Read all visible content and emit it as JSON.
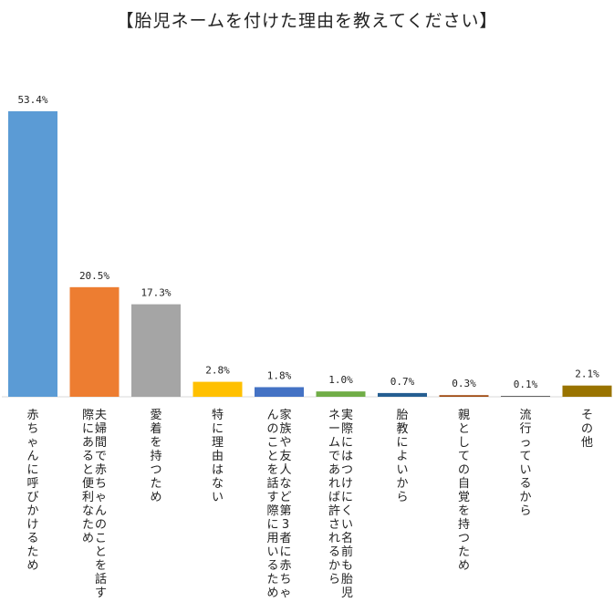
{
  "chart_data": {
    "type": "bar",
    "title": "【胎児ネームを付けた理由を教えてください】",
    "xlabel": "",
    "ylabel": "",
    "unit": "%",
    "ylim": [
      0,
      60
    ],
    "grid": false,
    "legend": "none",
    "categories": [
      "赤ちゃんに呼びかけるため",
      "夫婦間で赤ちゃんのことを話す際にあると便利なため",
      "愛着を持つため",
      "特に理由はない",
      "家族や友人など第3者に赤ちゃんのことを話す際に用いるため",
      "実際にはつけにくい名前も胎児ネームであれば許されるから",
      "胎教によいから",
      "親としての自覚を持つため",
      "流行っているから",
      "その他"
    ],
    "values": [
      53.4,
      20.5,
      17.3,
      2.8,
      1.8,
      1.0,
      0.7,
      0.3,
      0.1,
      2.1
    ],
    "value_labels": [
      "53.4%",
      "20.5%",
      "17.3%",
      "2.8%",
      "1.8%",
      "1.0%",
      "0.7%",
      "0.3%",
      "0.1%",
      "2.1%"
    ],
    "colors": [
      "#5B9BD5",
      "#ED7D31",
      "#A5A5A5",
      "#FFC000",
      "#4472C4",
      "#70AD47",
      "#255E91",
      "#9E480E",
      "#636363",
      "#997300"
    ]
  }
}
